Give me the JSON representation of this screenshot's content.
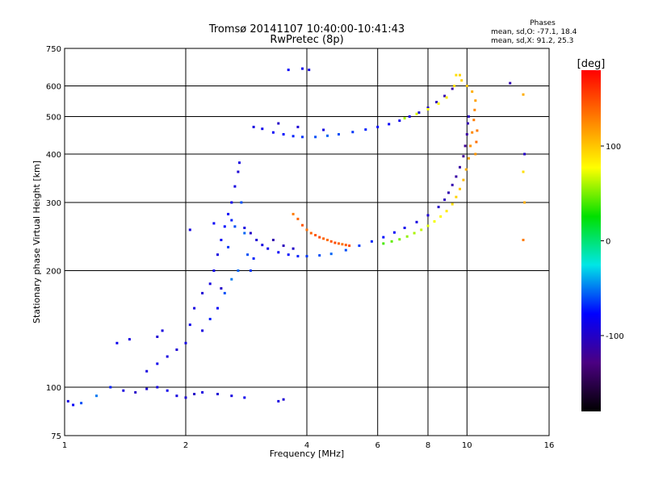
{
  "chart_data": {
    "type": "scatter",
    "title": "Tromsø 20141107 10:40:00-10:41:43",
    "subtitle": "RwPretec (8p)",
    "xlabel": "Frequency [MHz]",
    "ylabel": "Stationary phase Virtual Height [km]",
    "x_scale": "log",
    "y_scale": "log",
    "xlim": [
      1,
      16
    ],
    "ylim": [
      75,
      750
    ],
    "x_ticks": [
      1,
      2,
      4,
      6,
      8,
      10,
      16
    ],
    "y_ticks": [
      75,
      100,
      200,
      300,
      400,
      500,
      600,
      750
    ],
    "grid": true,
    "stats": {
      "heading": "Phases",
      "line_o": "mean, sd,O: -77.1, 18.4",
      "line_x": "mean, sd,X:  91.2, 25.3"
    },
    "colorbar": {
      "label": "[deg]",
      "min": -180,
      "max": 180,
      "ticks": [
        100,
        0,
        -100
      ],
      "colors": [
        "#ff0000",
        "#ff7f00",
        "#ffff00",
        "#00e000",
        "#00e6e6",
        "#0000ff",
        "#4b0082",
        "#000000"
      ]
    },
    "series": [
      {
        "points": [
          [
            1.02,
            92,
            -90
          ],
          [
            1.05,
            90,
            -80
          ],
          [
            1.1,
            91,
            -60
          ],
          [
            1.2,
            95,
            -50
          ],
          [
            1.3,
            100,
            -70
          ],
          [
            1.4,
            98,
            -90
          ],
          [
            1.5,
            97,
            -100
          ],
          [
            1.6,
            99,
            -95
          ],
          [
            1.7,
            100,
            -90
          ],
          [
            1.8,
            98,
            -85
          ],
          [
            1.9,
            95,
            -90
          ],
          [
            2.0,
            94,
            -95
          ],
          [
            2.1,
            96,
            -100
          ],
          [
            2.2,
            97,
            -90
          ],
          [
            2.4,
            96,
            -95
          ],
          [
            2.6,
            95,
            -90
          ],
          [
            2.8,
            94,
            -85
          ],
          [
            3.4,
            92,
            -90
          ],
          [
            3.5,
            93,
            -95
          ],
          [
            1.35,
            130,
            -85
          ],
          [
            1.45,
            133,
            -90
          ],
          [
            1.7,
            135,
            -95
          ],
          [
            1.75,
            140,
            -90
          ],
          [
            2.05,
            255,
            -90
          ],
          [
            2.35,
            265,
            -80
          ]
        ]
      },
      {
        "points": [
          [
            1.6,
            110,
            -90
          ],
          [
            1.7,
            115,
            -85
          ],
          [
            1.8,
            120,
            -90
          ],
          [
            1.9,
            125,
            -95
          ],
          [
            2.0,
            130,
            -90
          ],
          [
            2.05,
            145,
            -85
          ],
          [
            2.1,
            160,
            -90
          ],
          [
            2.2,
            175,
            -95
          ],
          [
            2.3,
            185,
            -90
          ],
          [
            2.35,
            200,
            -85
          ],
          [
            2.4,
            220,
            -90
          ],
          [
            2.45,
            240,
            -80
          ],
          [
            2.5,
            260,
            -75
          ],
          [
            2.55,
            280,
            -80
          ],
          [
            2.6,
            300,
            -85
          ],
          [
            2.65,
            330,
            -90
          ],
          [
            2.7,
            360,
            -95
          ],
          [
            2.72,
            380,
            -90
          ],
          [
            2.75,
            300,
            -60
          ],
          [
            2.8,
            250,
            -55
          ],
          [
            2.85,
            220,
            -60
          ],
          [
            2.9,
            200,
            -65
          ],
          [
            2.95,
            215,
            -70
          ],
          [
            2.5,
            175,
            -60
          ],
          [
            2.6,
            190,
            -50
          ],
          [
            2.4,
            160,
            -80
          ],
          [
            2.2,
            140,
            -90
          ],
          [
            2.3,
            150,
            -70
          ],
          [
            2.55,
            230,
            -65
          ],
          [
            2.65,
            260,
            -60
          ],
          [
            2.7,
            200,
            -55
          ],
          [
            2.45,
            180,
            -100
          ]
        ]
      },
      {
        "points": [
          [
            2.9,
            250,
            -100
          ],
          [
            3.0,
            240,
            -95
          ],
          [
            3.1,
            233,
            -90
          ],
          [
            3.2,
            228,
            -85
          ],
          [
            3.4,
            223,
            -80
          ],
          [
            3.6,
            220,
            -75
          ],
          [
            3.8,
            218,
            -70
          ],
          [
            4.0,
            218,
            -65
          ],
          [
            4.3,
            219,
            -60
          ],
          [
            4.6,
            221,
            -55
          ],
          [
            5.0,
            226,
            -60
          ],
          [
            5.4,
            232,
            -65
          ],
          [
            5.8,
            238,
            -70
          ],
          [
            6.2,
            244,
            -75
          ],
          [
            6.6,
            251,
            -80
          ],
          [
            7.0,
            258,
            -85
          ],
          [
            7.5,
            267,
            -90
          ],
          [
            8.0,
            278,
            -95
          ],
          [
            8.5,
            292,
            -100
          ],
          [
            8.8,
            305,
            -105
          ],
          [
            9.0,
            318,
            -110
          ],
          [
            9.2,
            333,
            -110
          ],
          [
            9.4,
            350,
            -115
          ],
          [
            9.6,
            370,
            -115
          ],
          [
            9.8,
            395,
            -120
          ],
          [
            9.9,
            420,
            -120
          ],
          [
            10.0,
            450,
            -115
          ],
          [
            10.05,
            480,
            -110
          ],
          [
            10.1,
            500,
            -105
          ],
          [
            3.3,
            240,
            -110
          ],
          [
            3.5,
            232,
            -105
          ],
          [
            3.7,
            228,
            -100
          ],
          [
            2.6,
            270,
            -70
          ],
          [
            2.8,
            258,
            -90
          ]
        ]
      },
      {
        "points": [
          [
            3.7,
            280,
            130
          ],
          [
            3.8,
            272,
            140
          ],
          [
            3.9,
            262,
            145
          ],
          [
            4.0,
            255,
            135
          ],
          [
            4.1,
            250,
            140
          ],
          [
            4.2,
            247,
            145
          ],
          [
            4.3,
            244,
            150
          ],
          [
            4.4,
            242,
            140
          ],
          [
            4.5,
            240,
            135
          ],
          [
            4.6,
            238,
            145
          ],
          [
            4.7,
            236,
            150
          ],
          [
            4.8,
            235,
            140
          ],
          [
            4.9,
            234,
            135
          ],
          [
            5.0,
            233,
            145
          ],
          [
            5.1,
            232,
            150
          ]
        ]
      },
      {
        "points": [
          [
            6.2,
            235,
            40
          ],
          [
            6.5,
            238,
            45
          ],
          [
            6.8,
            241,
            50
          ],
          [
            7.1,
            245,
            55
          ],
          [
            7.4,
            250,
            60
          ],
          [
            7.7,
            255,
            65
          ],
          [
            8.0,
            261,
            70
          ],
          [
            8.3,
            268,
            75
          ],
          [
            8.6,
            276,
            80
          ],
          [
            8.9,
            285,
            85
          ],
          [
            9.2,
            297,
            90
          ],
          [
            9.4,
            310,
            95
          ],
          [
            9.6,
            325,
            100
          ],
          [
            9.8,
            343,
            105
          ],
          [
            9.95,
            365,
            110
          ],
          [
            10.1,
            390,
            115
          ],
          [
            10.2,
            420,
            120
          ],
          [
            10.3,
            455,
            125
          ],
          [
            10.4,
            490,
            130
          ],
          [
            10.45,
            520,
            125
          ],
          [
            10.5,
            550,
            115
          ],
          [
            10.3,
            580,
            110
          ],
          [
            10.0,
            600,
            100
          ],
          [
            9.7,
            620,
            95
          ],
          [
            9.4,
            640,
            90
          ],
          [
            10.6,
            460,
            130
          ],
          [
            10.55,
            430,
            135
          ],
          [
            10.5,
            400,
            120
          ]
        ]
      },
      {
        "points": [
          [
            2.95,
            470,
            -90
          ],
          [
            3.1,
            465,
            -85
          ],
          [
            3.3,
            455,
            -80
          ],
          [
            3.5,
            450,
            -75
          ],
          [
            3.7,
            445,
            -70
          ],
          [
            3.9,
            443,
            -65
          ],
          [
            4.2,
            443,
            -60
          ],
          [
            4.5,
            446,
            -55
          ],
          [
            4.8,
            450,
            -60
          ],
          [
            5.2,
            456,
            -65
          ],
          [
            5.6,
            463,
            -70
          ],
          [
            6.0,
            470,
            -75
          ],
          [
            6.4,
            478,
            -80
          ],
          [
            6.8,
            488,
            -85
          ],
          [
            7.2,
            500,
            -90
          ],
          [
            7.6,
            512,
            -95
          ],
          [
            8.0,
            527,
            -100
          ],
          [
            8.4,
            545,
            -105
          ],
          [
            8.8,
            565,
            -110
          ],
          [
            9.2,
            590,
            -115
          ],
          [
            3.4,
            480,
            -100
          ],
          [
            3.8,
            470,
            -95
          ],
          [
            4.4,
            462,
            -90
          ],
          [
            3.6,
            660,
            -80
          ],
          [
            3.9,
            665,
            -85
          ],
          [
            4.05,
            660,
            -90
          ],
          [
            7.0,
            495,
            60
          ],
          [
            7.5,
            508,
            70
          ],
          [
            8.0,
            522,
            75
          ],
          [
            8.5,
            540,
            80
          ],
          [
            8.9,
            560,
            85
          ],
          [
            9.3,
            600,
            90
          ],
          [
            9.6,
            640,
            95
          ],
          [
            12.8,
            610,
            -110
          ],
          [
            13.8,
            570,
            110
          ],
          [
            13.9,
            400,
            -100
          ],
          [
            13.8,
            360,
            90
          ],
          [
            13.9,
            300,
            110
          ],
          [
            13.8,
            240,
            130
          ]
        ]
      }
    ]
  }
}
